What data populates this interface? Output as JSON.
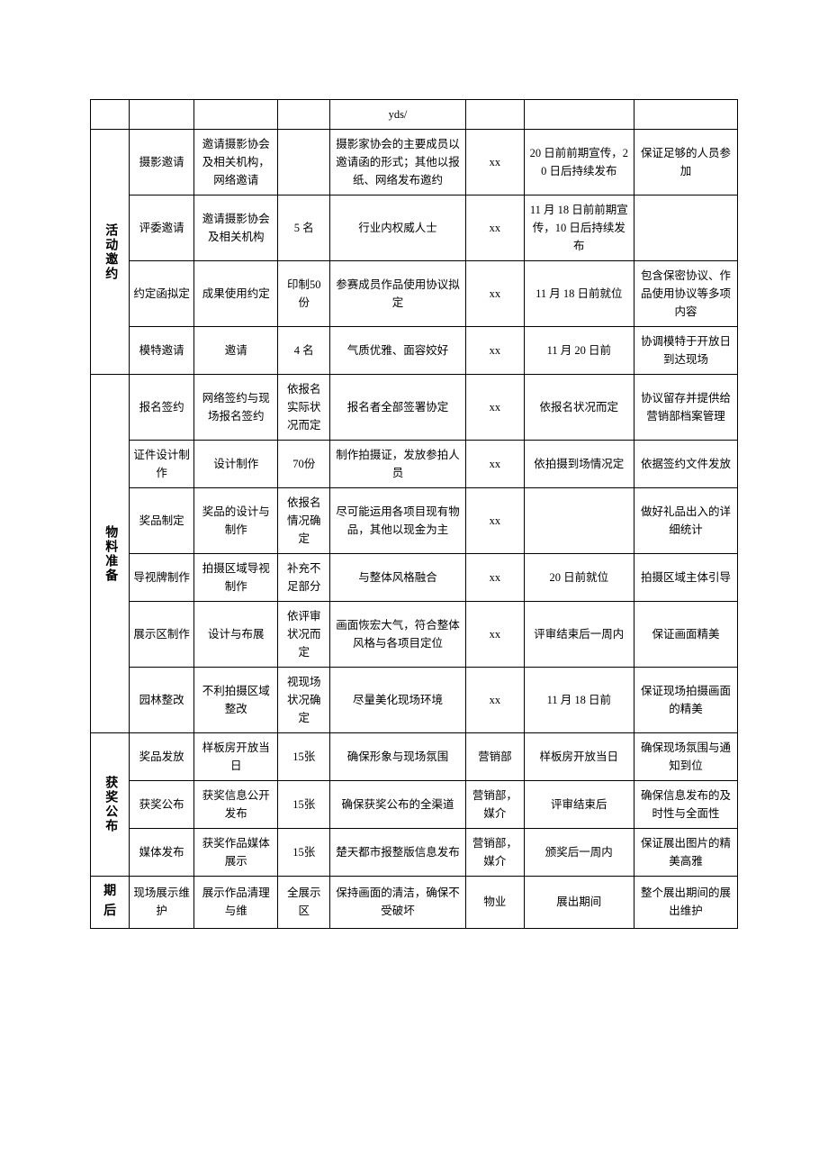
{
  "rows": [
    {
      "cat": "",
      "items": [
        {
          "c2": "",
          "c3": "",
          "c4": "",
          "c5": "yds/",
          "c6": "",
          "c7": "",
          "c8": ""
        }
      ]
    },
    {
      "cat": "活动邀约",
      "vertical": true,
      "items": [
        {
          "c2": "摄影邀请",
          "c3": "邀请摄影协会及相关机构，网络邀请",
          "c4": "",
          "c5": "摄影家协会的主要成员以邀请函的形式；其他以报纸、网络发布邀约",
          "c6": "xx",
          "c7": "20 日前前期宣传，20 日后持续发布",
          "c8": "保证足够的人员参加"
        },
        {
          "c2": "评委邀请",
          "c3": "邀请摄影协会及相关机构",
          "c4": "5 名",
          "c5": "行业内权威人士",
          "c6": "xx",
          "c7": "11 月 18 日前前期宣传，10 日后持续发布",
          "c8": ""
        },
        {
          "c2": "约定函拟定",
          "c3": "成果使用约定",
          "c4": "印制50份",
          "c5": "参赛成员作品使用协议拟定",
          "c6": "xx",
          "c7": "11 月 18 日前就位",
          "c8": "包含保密协议、作品使用协议等多项内容"
        },
        {
          "c2": "模特邀请",
          "c3": "邀请",
          "c4": "4 名",
          "c5": "气质优雅、面容姣好",
          "c6": "xx",
          "c7": "11 月 20 日前",
          "c8": "协调模特于开放日到达现场"
        }
      ]
    },
    {
      "cat": "物料准备",
      "vertical": true,
      "items": [
        {
          "c2": "报名签约",
          "c3": "网络签约与现场报名签约",
          "c4": "依报名实际状况而定",
          "c5": "报名者全部签署协定",
          "c6": "xx",
          "c7": "依报名状况而定",
          "c8": "协议留存并提供给营销部档案管理"
        },
        {
          "c2": "证件设计制作",
          "c3": "设计制作",
          "c4": "70份",
          "c5": "制作拍摄证，发放参拍人员",
          "c6": "xx",
          "c7": "依拍摄到场情况定",
          "c8": "依据签约文件发放"
        },
        {
          "c2": "奖品制定",
          "c3": "奖品的设计与制作",
          "c4": "依报名情况确定",
          "c5": "尽可能运用各项目现有物品，其他以现金为主",
          "c6": "xx",
          "c7": "",
          "c8": "做好礼品出入的详细统计"
        },
        {
          "c2": "导视牌制作",
          "c3": "拍摄区域导视制作",
          "c4": "补充不足部分",
          "c5": "与整体风格融合",
          "c6": "xx",
          "c7": "20 日前就位",
          "c8": "拍摄区域主体引导"
        },
        {
          "c2": "展示区制作",
          "c3": "设计与布展",
          "c4": "依评审状况而定",
          "c5": "画面恢宏大气，符合整体风格与各项目定位",
          "c6": "xx",
          "c7": "评审结束后一周内",
          "c8": "保证画面精美"
        },
        {
          "c2": "园林整改",
          "c3": "不利拍摄区域整改",
          "c4": "视现场状况确定",
          "c5": "尽量美化现场环境",
          "c6": "xx",
          "c7": "11 月 18 日前",
          "c8": "保证现场拍摄画面的精美"
        }
      ]
    },
    {
      "cat": "获奖公布",
      "vertical": true,
      "items": [
        {
          "c2": "奖品发放",
          "c3": "样板房开放当日",
          "c4": "15张",
          "c5": "确保形象与现场氛围",
          "c6": "营销部",
          "c7": "样板房开放当日",
          "c8": "确保现场氛围与通知到位"
        },
        {
          "c2": "获奖公布",
          "c3": "获奖信息公开发布",
          "c4": "15张",
          "c5": "确保获奖公布的全渠道",
          "c6": "营销部，媒介",
          "c7": "评审结束后",
          "c8": "确保信息发布的及时性与全面性"
        },
        {
          "c2": "媒体发布",
          "c3": "获奖作品媒体展示",
          "c4": "15张",
          "c5": "楚天都市报整版信息发布",
          "c6": "营销部，媒介",
          "c7": "颁奖后一周内",
          "c8": "保证展出图片的精美高雅"
        }
      ]
    },
    {
      "cat": "期　后",
      "vertical": false,
      "items": [
        {
          "c2": "现场展示维护",
          "c3": "展示作品清理与维",
          "c4": "全展示区",
          "c5": "保持画面的清洁，确保不受破坏",
          "c6": "物业",
          "c7": "展出期间",
          "c8": "整个展出期间的展出维护"
        }
      ]
    }
  ],
  "style": {
    "border_color": "#000000",
    "bg": "#ffffff",
    "text_color": "#000000",
    "font_size_cell": 12.5,
    "font_size_cat": 14,
    "col_widths_pct": {
      "c1": 6,
      "c2": 10,
      "c3": 13,
      "c4": 8,
      "c5": 21,
      "c6": 9,
      "c7": 17,
      "c8": 16
    }
  }
}
